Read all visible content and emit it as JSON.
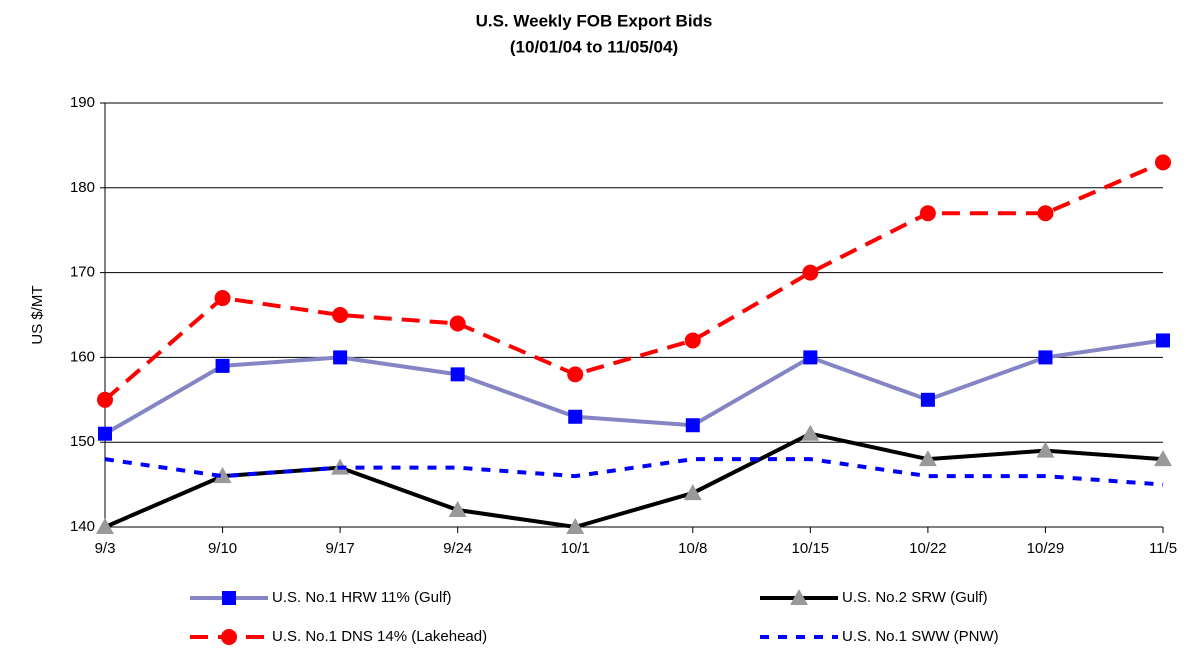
{
  "chart_data": {
    "type": "line",
    "title": "U.S.  Weekly  FOB Export Bids",
    "subtitle": "(10/01/04 to 11/05/04)",
    "y_label": "US $/MT",
    "categories": [
      "9/3",
      "9/10",
      "9/17",
      "9/24",
      "10/1",
      "10/8",
      "10/15",
      "10/22",
      "10/29",
      "11/5"
    ],
    "ylim": [
      140,
      190
    ],
    "yticks": [
      140,
      150,
      160,
      170,
      180,
      190
    ],
    "grid": true,
    "legend": "bottom",
    "series": [
      {
        "name": "U.S. No.1 HRW 11% (Gulf)",
        "line_color": "#8585c6",
        "marker_color": "#0000ff",
        "marker": "square",
        "dash": "solid",
        "values": [
          151,
          159,
          160,
          158,
          153,
          152,
          160,
          155,
          160,
          162
        ]
      },
      {
        "name": "U.S. No.2 SRW (Gulf)",
        "line_color": "#000000",
        "marker_color": "#999999",
        "marker": "triangle",
        "dash": "solid",
        "values": [
          140,
          146,
          147,
          142,
          140,
          144,
          151,
          148,
          149,
          148
        ]
      },
      {
        "name": "U.S. No.1 DNS 14% (Lakehead)",
        "line_color": "#ff0000",
        "marker_color": "#ff0000",
        "marker": "circle",
        "dash": "dashed",
        "values": [
          155,
          167,
          165,
          164,
          158,
          162,
          170,
          177,
          177,
          183
        ]
      },
      {
        "name": "U.S. No.1 SWW (PNW)",
        "line_color": "#0000ff",
        "marker": "none",
        "dash": "dotted",
        "values": [
          148,
          146,
          147,
          147,
          146,
          148,
          148,
          146,
          146,
          145
        ]
      }
    ]
  }
}
